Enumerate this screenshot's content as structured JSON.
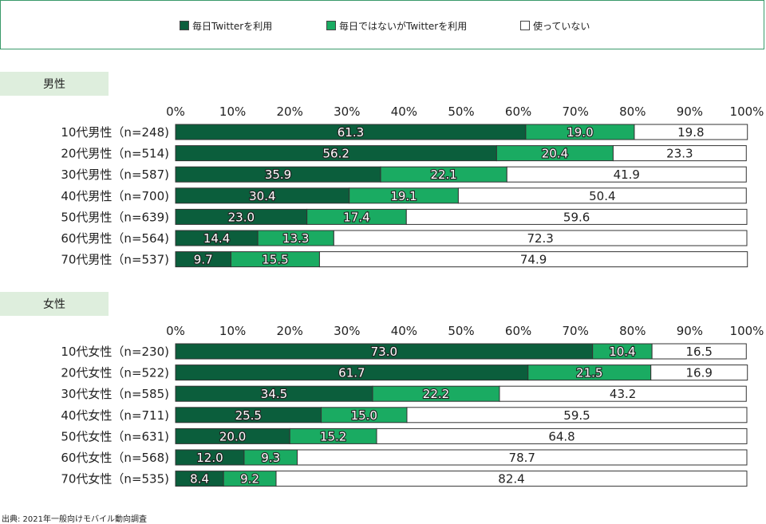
{
  "legend": {
    "items": [
      {
        "label": "毎日Twitterを利用",
        "color": "#0b5e3c"
      },
      {
        "label": "毎日ではないがTwitterを利用",
        "color": "#1aab62"
      },
      {
        "label": "使っていない",
        "color": "#ffffff"
      }
    ]
  },
  "source": "出典: 2021年一般向けモバイル動向調査",
  "chart_data": [
    {
      "type": "bar",
      "stacked": true,
      "orientation": "horizontal",
      "title": "男性",
      "categories": [
        "10代男性（n=248)",
        "20代男性（n=514)",
        "30代男性（n=587)",
        "40代男性（n=700)",
        "50代男性（n=639)",
        "60代男性（n=564)",
        "70代男性（n=537)"
      ],
      "series": [
        {
          "name": "毎日Twitterを利用",
          "values": [
            61.3,
            56.2,
            35.9,
            30.4,
            23.0,
            14.4,
            9.7
          ]
        },
        {
          "name": "毎日ではないがTwitterを利用",
          "values": [
            19.0,
            20.4,
            22.1,
            19.1,
            17.4,
            13.3,
            15.5
          ]
        },
        {
          "name": "使っていない",
          "values": [
            19.8,
            23.3,
            41.9,
            50.4,
            59.6,
            72.3,
            74.9
          ]
        }
      ],
      "xlim": [
        0,
        100
      ],
      "ticks": [
        "0%",
        "10%",
        "20%",
        "30%",
        "40%",
        "50%",
        "60%",
        "70%",
        "80%",
        "90%",
        "100%"
      ],
      "data_labels": true
    },
    {
      "type": "bar",
      "stacked": true,
      "orientation": "horizontal",
      "title": "女性",
      "categories": [
        "10代女性（n=230)",
        "20代女性（n=522)",
        "30代女性（n=585)",
        "40代女性（n=711)",
        "50代女性（n=631)",
        "60代女性（n=568)",
        "70代女性（n=535)"
      ],
      "series": [
        {
          "name": "毎日Twitterを利用",
          "values": [
            73.0,
            61.7,
            34.5,
            25.5,
            20.0,
            12.0,
            8.4
          ]
        },
        {
          "name": "毎日ではないがTwitterを利用",
          "values": [
            10.4,
            21.5,
            22.2,
            15.0,
            15.2,
            9.3,
            9.2
          ]
        },
        {
          "name": "使っていない",
          "values": [
            16.5,
            16.9,
            43.2,
            59.5,
            64.8,
            78.7,
            82.4
          ]
        }
      ],
      "xlim": [
        0,
        100
      ],
      "ticks": [
        "0%",
        "10%",
        "20%",
        "30%",
        "40%",
        "50%",
        "60%",
        "70%",
        "80%",
        "90%",
        "100%"
      ],
      "data_labels": true
    }
  ]
}
